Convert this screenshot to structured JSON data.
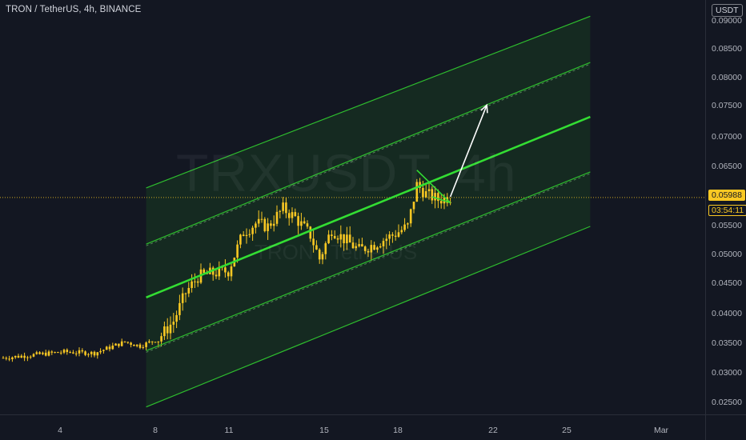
{
  "header": {
    "title": "TRON / TetherUS, 4h, BINANCE"
  },
  "watermark": {
    "symbol": "TRXUSDT, 4h",
    "name": "TRON / TetherUS"
  },
  "price_axis": {
    "currency": "USDT",
    "labels": [
      "0.09000",
      "0.08500",
      "0.08000",
      "0.07500",
      "0.07000",
      "0.06500",
      "0.05500",
      "0.05000",
      "0.04500",
      "0.04000",
      "0.03500",
      "0.03000",
      "0.02500"
    ]
  },
  "time_axis": {
    "labels": [
      "4",
      "8",
      "11",
      "15",
      "18",
      "22",
      "25",
      "Mar"
    ]
  },
  "badges": {
    "last_price": "0.05988",
    "countdown": "03:54:11"
  },
  "colors": {
    "background": "#131722",
    "candle": "#f9c823",
    "channel_line": "#2ebd2e",
    "channel_mid": "#33dd33",
    "channel_fill": "#1b5e20",
    "arrow": "#ffffff",
    "price_line": "#f9c823"
  },
  "chart_data": {
    "type": "candlestick",
    "symbol": "TRXUSDT",
    "interval": "4h",
    "exchange": "BINANCE",
    "last_price": 0.05988,
    "ylim": [
      0.0225,
      0.0915
    ],
    "x_ticks": [
      "4",
      "8",
      "11",
      "15",
      "18",
      "22",
      "25",
      "Mar"
    ],
    "close_path": [
      {
        "bar": 0,
        "close": 0.0328
      },
      {
        "bar": 10,
        "close": 0.0333
      },
      {
        "bar": 20,
        "close": 0.0338
      },
      {
        "bar": 30,
        "close": 0.0336
      },
      {
        "bar": 40,
        "close": 0.0355
      },
      {
        "bar": 45,
        "close": 0.0348
      },
      {
        "bar": 51,
        "close": 0.036
      },
      {
        "bar": 56,
        "close": 0.039
      },
      {
        "bar": 60,
        "close": 0.0438
      },
      {
        "bar": 64,
        "close": 0.0465
      },
      {
        "bar": 68,
        "close": 0.047
      },
      {
        "bar": 74,
        "close": 0.0475
      },
      {
        "bar": 79,
        "close": 0.054
      },
      {
        "bar": 83,
        "close": 0.0555
      },
      {
        "bar": 87,
        "close": 0.055
      },
      {
        "bar": 92,
        "close": 0.058
      },
      {
        "bar": 96,
        "close": 0.0565
      },
      {
        "bar": 101,
        "close": 0.0535
      },
      {
        "bar": 104,
        "close": 0.0495
      },
      {
        "bar": 108,
        "close": 0.0545
      },
      {
        "bar": 113,
        "close": 0.0525
      },
      {
        "bar": 117,
        "close": 0.051
      },
      {
        "bar": 122,
        "close": 0.052
      },
      {
        "bar": 128,
        "close": 0.0535
      },
      {
        "bar": 133,
        "close": 0.055
      },
      {
        "bar": 136,
        "close": 0.062
      },
      {
        "bar": 139,
        "close": 0.0605
      },
      {
        "bar": 143,
        "close": 0.0595
      },
      {
        "bar": 147,
        "close": 0.06
      }
    ],
    "channel": {
      "outer_top": {
        "start": [
          47,
          0.0615
        ],
        "end": [
          193,
          0.0905
        ]
      },
      "inner_top": {
        "start": [
          47,
          0.052
        ],
        "end": [
          193,
          0.0827
        ]
      },
      "middle": {
        "start": [
          47,
          0.043
        ],
        "end": [
          193,
          0.0735
        ]
      },
      "inner_bottom": {
        "start": [
          47,
          0.034
        ],
        "end": [
          193,
          0.0642
        ]
      },
      "outer_bottom": {
        "start": [
          47,
          0.0245
        ],
        "end": [
          193,
          0.055
        ]
      }
    },
    "pennant": {
      "top": [
        136,
        0.0645
      ],
      "apex": [
        147,
        0.059
      ],
      "bottom": [
        141,
        0.06
      ]
    },
    "projection_arrow": {
      "from": [
        147,
        0.06
      ],
      "to": [
        159,
        0.0755
      ]
    }
  }
}
